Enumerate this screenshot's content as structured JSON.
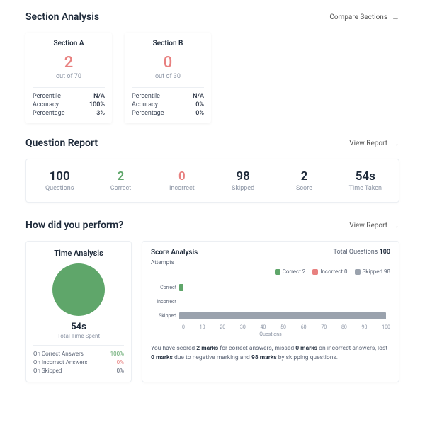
{
  "colors": {
    "text_dark": "#1e2a3a",
    "text_muted": "#8b94a4",
    "green": "#5fa66a",
    "red": "#e8807f",
    "grey_bar": "#9aa2ad",
    "border": "#eceff3"
  },
  "section_analysis": {
    "title": "Section Analysis",
    "compare_label": "Compare Sections",
    "cards": [
      {
        "name": "Section A",
        "score": "2",
        "outof": "out of 70",
        "stats": [
          {
            "k": "Percentile",
            "v": "N/A"
          },
          {
            "k": "Accuracy",
            "v": "100%"
          },
          {
            "k": "Percentage",
            "v": "3%"
          }
        ]
      },
      {
        "name": "Section B",
        "score": "0",
        "outof": "out of 30",
        "stats": [
          {
            "k": "Percentile",
            "v": "N/A"
          },
          {
            "k": "Accuracy",
            "v": "0%"
          },
          {
            "k": "Percentage",
            "v": "0%"
          }
        ]
      }
    ]
  },
  "question_report": {
    "title": "Question Report",
    "view_label": "View Report",
    "items": [
      {
        "num": "100",
        "lbl": "Questions",
        "cls": ""
      },
      {
        "num": "2",
        "lbl": "Correct",
        "cls": "green"
      },
      {
        "num": "0",
        "lbl": "Incorrect",
        "cls": "red"
      },
      {
        "num": "98",
        "lbl": "Skipped",
        "cls": ""
      },
      {
        "num": "2",
        "lbl": "Score",
        "cls": ""
      },
      {
        "num": "54s",
        "lbl": "Time Taken",
        "cls": ""
      }
    ]
  },
  "perform": {
    "title": "How did you perform?",
    "view_label": "View Report",
    "time": {
      "title": "Time Analysis",
      "value": "54s",
      "sub": "Total Time Spent",
      "rows": [
        {
          "k": "On Correct Answers",
          "v": "100%",
          "cls": "c-green"
        },
        {
          "k": "On Incorrect Answers",
          "v": "0%",
          "cls": "c-red"
        },
        {
          "k": "On Skipped",
          "v": "0%",
          "cls": ""
        }
      ],
      "circle_color": "#5fa66a"
    },
    "score": {
      "title": "Score Analysis",
      "total_label": "Total Questions",
      "total_value": "100",
      "attempts_label": "Attempts",
      "legend": [
        {
          "label": "Correct",
          "value": "2",
          "color": "#5fa66a"
        },
        {
          "label": "Incorrect",
          "value": "0",
          "color": "#e8807f"
        },
        {
          "label": "Skipped",
          "value": "98",
          "color": "#9aa2ad"
        }
      ],
      "bars": [
        {
          "label": "Correct",
          "value": 2,
          "max": 100,
          "color": "#5fa66a"
        },
        {
          "label": "Incorrect",
          "value": 0,
          "max": 100,
          "color": "#e8807f"
        },
        {
          "label": "Skipped",
          "value": 98,
          "max": 100,
          "color": "#9aa2ad"
        }
      ],
      "xticks": [
        "0",
        "10",
        "20",
        "30",
        "40",
        "50",
        "60",
        "70",
        "80",
        "90",
        "100"
      ],
      "xlabel": "Questions",
      "summary_parts": [
        "You have scored ",
        "2 marks",
        " for correct answers, missed ",
        "0 marks",
        " on incorrect answers, lost ",
        "0 marks",
        " due to negative marking and ",
        "98 marks",
        " by skipping questions."
      ]
    }
  }
}
